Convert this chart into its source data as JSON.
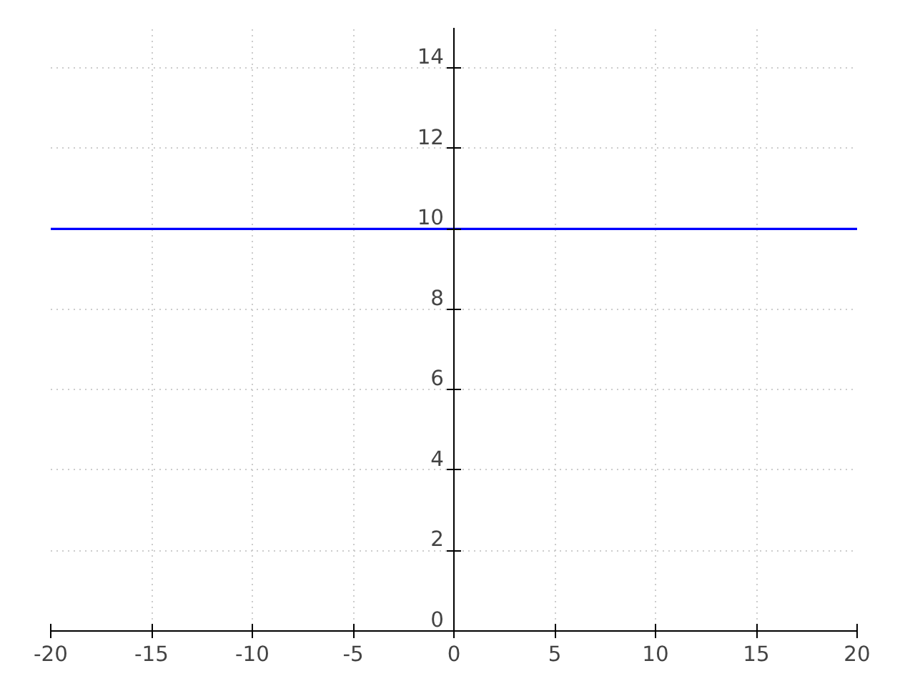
{
  "chart_data": {
    "type": "line",
    "x": [
      -20,
      20
    ],
    "series": [
      {
        "color": "#0000ff",
        "values": [
          10,
          10
        ]
      }
    ],
    "xlim": [
      -20,
      20
    ],
    "ylim": [
      0,
      15
    ],
    "xticks": [
      -20,
      -15,
      -10,
      -5,
      0,
      5,
      10,
      15,
      20
    ],
    "yticks": [
      0,
      2,
      4,
      6,
      8,
      10,
      12,
      14
    ],
    "grid": true,
    "line_style": "solid"
  }
}
